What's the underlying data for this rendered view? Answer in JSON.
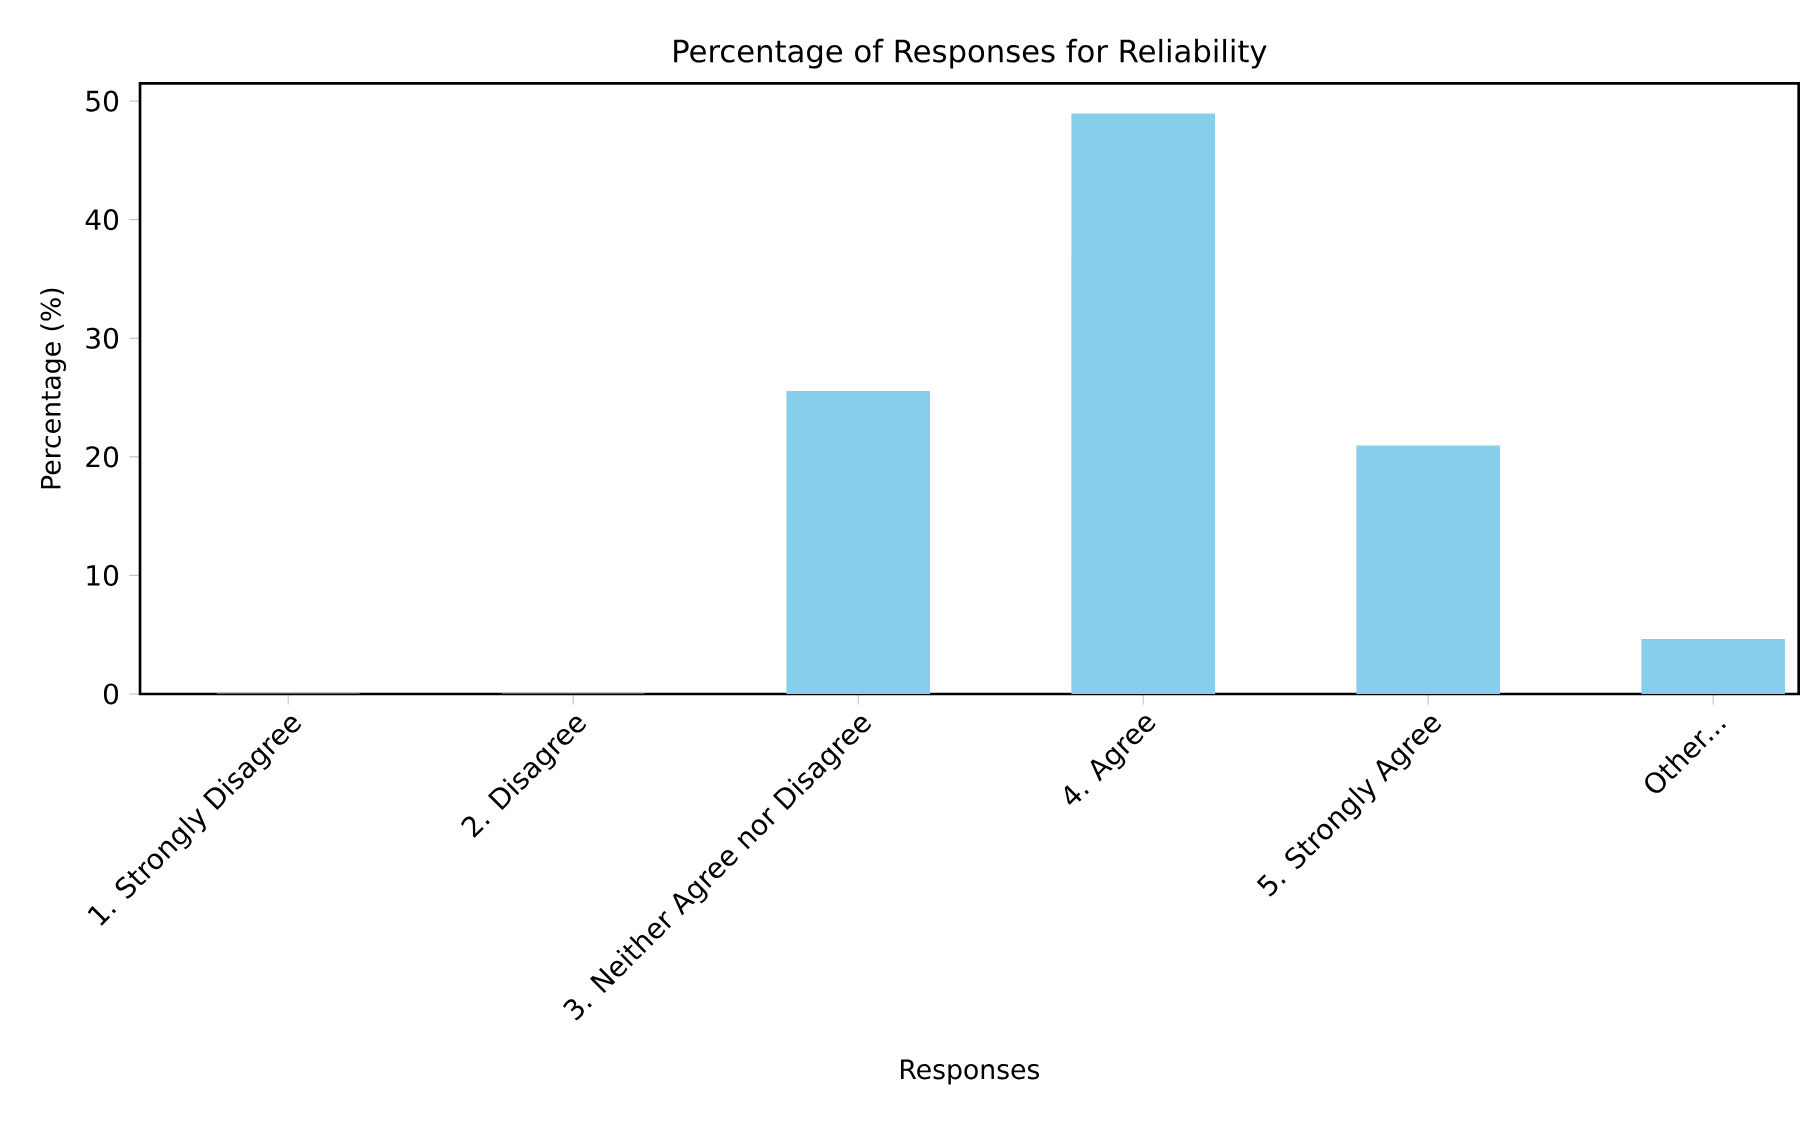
{
  "chart_data": {
    "type": "bar",
    "title": "Percentage of Responses for Reliability",
    "xlabel": "Responses",
    "ylabel": "Percentage (%)",
    "categories": [
      "1. Strongly Disagree",
      "2. Disagree",
      "3. Neither Agree nor Disagree",
      "4. Agree",
      "5. Strongly Agree",
      "Other..."
    ],
    "values": [
      0,
      0,
      25.5,
      48.9,
      20.9,
      4.6
    ],
    "color": "#87ceeb",
    "ylim": [
      0,
      51.5
    ],
    "yticks": [
      0,
      10,
      20,
      30,
      40,
      50
    ],
    "grid": false
  }
}
